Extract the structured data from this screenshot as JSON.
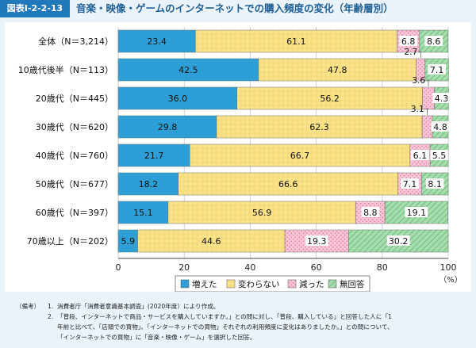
{
  "figure": {
    "label": "図表Ⅰ-2-2-13",
    "title": "音楽・映像・ゲームのインターネットでの購入頻度の変化（年齢層別）"
  },
  "chart_data": {
    "type": "bar",
    "orientation": "horizontal",
    "stacked": true,
    "categories": [
      "全体（N＝3,214）",
      "10歳代後半（N＝113）",
      "20歳代（N＝445）",
      "30歳代（N＝620）",
      "40歳代（N＝760）",
      "50歳代（N＝677）",
      "60歳代（N＝397）",
      "70歳以上（N＝202）"
    ],
    "series": [
      {
        "name": "増えた",
        "color": "#2e9fd6",
        "values": [
          23.4,
          42.5,
          36.0,
          29.8,
          21.7,
          18.2,
          15.1,
          5.9
        ],
        "labels": [
          "23.4",
          "42.5",
          "36.0",
          "29.8",
          "21.7",
          "18.2",
          "15.1",
          "5.9"
        ]
      },
      {
        "name": "変わらない",
        "color": "#fbe38e",
        "values": [
          61.1,
          47.8,
          56.2,
          62.3,
          66.7,
          66.6,
          56.9,
          44.6
        ],
        "labels": [
          "61.1",
          "47.8",
          "56.2",
          "62.3",
          "66.7",
          "66.6",
          "56.9",
          "44.6"
        ]
      },
      {
        "name": "減った",
        "color": "#f7b9d0",
        "values": [
          6.8,
          2.7,
          3.6,
          3.1,
          6.1,
          7.1,
          8.8,
          19.3
        ],
        "labels": [
          "6.8",
          "2.7",
          "3.6",
          "3.1",
          "6.1",
          "7.1",
          "8.8",
          "19.3"
        ]
      },
      {
        "name": "無回答",
        "color": "#8ed09a",
        "values": [
          8.6,
          7.1,
          4.3,
          4.8,
          5.5,
          8.1,
          19.1,
          30.2
        ],
        "labels": [
          "8.6",
          "7.1",
          "4.3",
          "4.8",
          "5.5",
          "8.1",
          "19.1",
          "30.2"
        ]
      }
    ],
    "xlim": [
      0,
      100
    ],
    "xticks": [
      0,
      20,
      40,
      60,
      80,
      100
    ],
    "xlabel": "（%）"
  },
  "notes": {
    "tag": "（備考）",
    "items": [
      {
        "num": "1.",
        "text": "消費者庁「消費者意識基本調査」(2020年度）により作成。"
      },
      {
        "num": "2.",
        "text": "「普段、インターネットで商品・サービスを購入していますか。」との問に対し、「普段、購入している」と回答した人に「1"
      },
      {
        "num": "",
        "text": "年前と比べて、「店頭での買物」、「インターネットでの買物」それぞれの利用頻度に変化はありましたか。」との問について、"
      },
      {
        "num": "",
        "text": "「インターネットでの買物」に「音楽・映像・ゲーム」を選択した回答。"
      }
    ]
  }
}
